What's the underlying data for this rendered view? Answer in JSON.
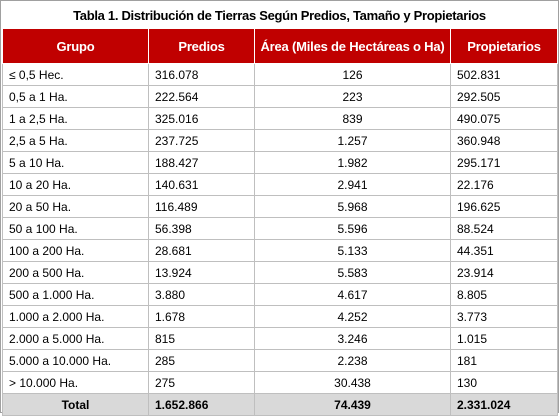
{
  "title": "Tabla 1. Distribución de Tierras Según Predios, Tamaño y Propietarios",
  "headers": [
    "Grupo",
    "Predios",
    "Área (Miles de Hectáreas o Ha)",
    "Propietarios"
  ],
  "rows": [
    {
      "grupo": "≤ 0,5 Hec.",
      "predios": "316.078",
      "area": "126",
      "propietarios": "502.831"
    },
    {
      "grupo": "0,5 a 1 Ha.",
      "predios": "222.564",
      "area": "223",
      "propietarios": "292.505"
    },
    {
      "grupo": "1 a 2,5 Ha.",
      "predios": "325.016",
      "area": "839",
      "propietarios": "490.075"
    },
    {
      "grupo": "2,5 a 5 Ha.",
      "predios": "237.725",
      "area": "1.257",
      "propietarios": "360.948"
    },
    {
      "grupo": "5 a 10 Ha.",
      "predios": "188.427",
      "area": "1.982",
      "propietarios": "295.171"
    },
    {
      "grupo": "10 a 20 Ha.",
      "predios": "140.631",
      "area": "2.941",
      "propietarios": "22.176"
    },
    {
      "grupo": "20 a 50 Ha.",
      "predios": "116.489",
      "area": "5.968",
      "propietarios": "196.625"
    },
    {
      "grupo": "50 a 100 Ha.",
      "predios": "56.398",
      "area": "5.596",
      "propietarios": "88.524"
    },
    {
      "grupo": "100 a 200 Ha.",
      "predios": "28.681",
      "area": "5.133",
      "propietarios": "44.351"
    },
    {
      "grupo": "200 a 500 Ha.",
      "predios": "13.924",
      "area": "5.583",
      "propietarios": "23.914"
    },
    {
      "grupo": "500 a 1.000 Ha.",
      "predios": "3.880",
      "area": "4.617",
      "propietarios": "8.805"
    },
    {
      "grupo": "1.000 a 2.000 Ha.",
      "predios": "1.678",
      "area": "4.252",
      "propietarios": "3.773"
    },
    {
      "grupo": "2.000 a 5.000 Ha.",
      "predios": "815",
      "area": "3.246",
      "propietarios": "1.015"
    },
    {
      "grupo": "5.000 a 10.000 Ha.",
      "predios": "285",
      "area": "2.238",
      "propietarios": "181"
    },
    {
      "grupo": "> 10.000 Ha.",
      "predios": "275",
      "area": "30.438",
      "propietarios": "130"
    }
  ],
  "total": {
    "grupo": "Total",
    "predios": "1.652.866",
    "area": "74.439",
    "propietarios": "2.331.024"
  },
  "colors": {
    "header_bg": "#c00000",
    "header_text": "#ffffff",
    "total_bg": "#d9d9d9",
    "grid": "#bfbfbf"
  }
}
